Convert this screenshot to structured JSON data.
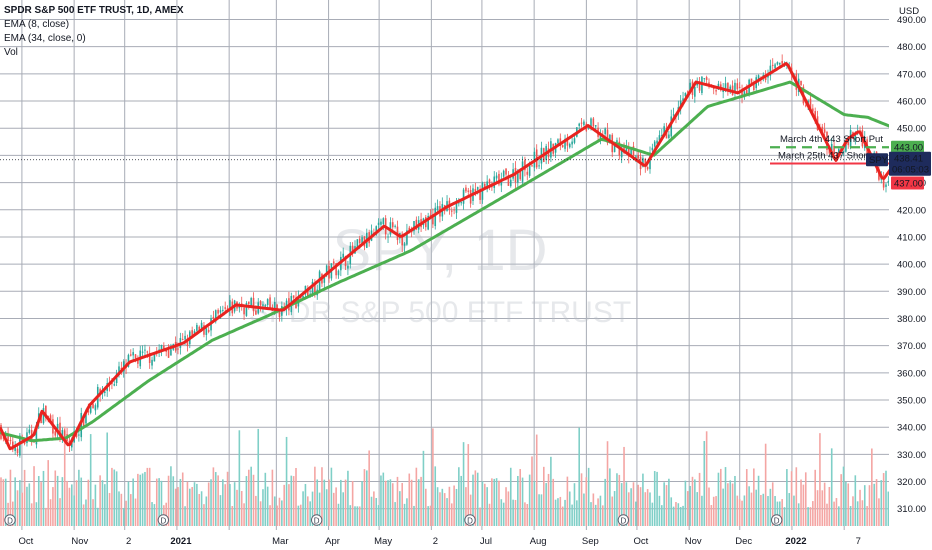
{
  "header": {
    "symbol_line": "SPDR S&P 500 ETF TRUST, 1D, AMEX",
    "indicator_1": "EMA (8, close)",
    "indicator_2": "EMA (34, close, 0)",
    "indicator_3": "Vol"
  },
  "watermark": {
    "ticker": "SPY, 1D",
    "name": "SPDR S&P 500 ETF TRUST"
  },
  "annotations": {
    "line1_label": "March 4th 443 Short Put",
    "line2_label": "March 25th 437 Short"
  },
  "price_tags": {
    "tag_443": "443.00",
    "ticker": "SPY",
    "last_price": "438.41",
    "countdown": "06:05:03",
    "tag_437": "437.00"
  },
  "colors": {
    "ema_fast": "#e8231f",
    "ema_slow": "#4caf50",
    "candle_up": "#26a69a",
    "candle_down": "#ef5350",
    "vol_up": "#7fcfc7",
    "vol_down": "#f4a5a3",
    "tag_443": "#4caf50",
    "tag_437": "#f23645",
    "last_price_tag": "#1e2b5c",
    "grid": "#a8acb6"
  },
  "chart_data": {
    "type": "candlestick",
    "title": "SPDR S&P 500 ETF TRUST, 1D, AMEX",
    "ylabel": "USD",
    "ylim": [
      304,
      496
    ],
    "y_ticks": [
      490,
      480,
      470,
      460,
      450,
      440,
      430,
      420,
      410,
      400,
      390,
      380,
      370,
      360,
      350,
      340,
      330,
      320,
      310
    ],
    "x_ticks": [
      "Oct",
      "Nov",
      "2",
      "2021",
      "Mar",
      "Apr",
      "May",
      "2",
      "Jul",
      "Aug",
      "Sep",
      "Oct",
      "Nov",
      "Dec",
      "2022",
      "7"
    ],
    "grid": true,
    "ema_fast_waypoints": [
      {
        "t": "2020-09-18",
        "v": 340
      },
      {
        "t": "2020-09-24",
        "v": 332
      },
      {
        "t": "2020-10-08",
        "v": 337
      },
      {
        "t": "2020-10-13",
        "v": 346
      },
      {
        "t": "2020-10-29",
        "v": 333
      },
      {
        "t": "2020-11-10",
        "v": 348
      },
      {
        "t": "2020-12-04",
        "v": 364
      },
      {
        "t": "2021-01-05",
        "v": 371
      },
      {
        "t": "2021-02-05",
        "v": 385
      },
      {
        "t": "2021-03-05",
        "v": 383
      },
      {
        "t": "2021-04-01",
        "v": 397
      },
      {
        "t": "2021-05-04",
        "v": 414
      },
      {
        "t": "2021-05-14",
        "v": 410
      },
      {
        "t": "2021-06-10",
        "v": 421
      },
      {
        "t": "2021-07-20",
        "v": 433
      },
      {
        "t": "2021-09-02",
        "v": 451
      },
      {
        "t": "2021-10-06",
        "v": 436
      },
      {
        "t": "2021-11-05",
        "v": 467
      },
      {
        "t": "2021-11-30",
        "v": 463
      },
      {
        "t": "2021-12-29",
        "v": 474
      },
      {
        "t": "2022-01-27",
        "v": 438
      },
      {
        "t": "2022-02-03",
        "v": 446
      },
      {
        "t": "2022-02-10",
        "v": 449
      },
      {
        "t": "2022-02-24",
        "v": 431
      },
      {
        "t": "2022-03-03",
        "v": 437
      }
    ],
    "ema_slow_waypoints": [
      {
        "t": "2020-09-18",
        "v": 338
      },
      {
        "t": "2020-10-07",
        "v": 335
      },
      {
        "t": "2020-10-27",
        "v": 336
      },
      {
        "t": "2020-11-12",
        "v": 342
      },
      {
        "t": "2020-12-15",
        "v": 357
      },
      {
        "t": "2021-01-22",
        "v": 372
      },
      {
        "t": "2021-02-24",
        "v": 381
      },
      {
        "t": "2021-04-06",
        "v": 393
      },
      {
        "t": "2021-05-20",
        "v": 405
      },
      {
        "t": "2021-07-09",
        "v": 423
      },
      {
        "t": "2021-09-10",
        "v": 446
      },
      {
        "t": "2021-10-11",
        "v": 440
      },
      {
        "t": "2021-11-12",
        "v": 458
      },
      {
        "t": "2021-12-31",
        "v": 467
      },
      {
        "t": "2022-02-01",
        "v": 455
      },
      {
        "t": "2022-02-15",
        "v": 454
      },
      {
        "t": "2022-03-03",
        "v": 450
      }
    ],
    "horizontal_lines": [
      {
        "label": "March 4th 443 Short Put",
        "value": 443,
        "color": "#4caf50",
        "style": "dashed"
      },
      {
        "label": "March 25th 437 Short",
        "value": 437,
        "color": "#f23645",
        "style": "solid"
      }
    ],
    "last_price": 438.41
  }
}
